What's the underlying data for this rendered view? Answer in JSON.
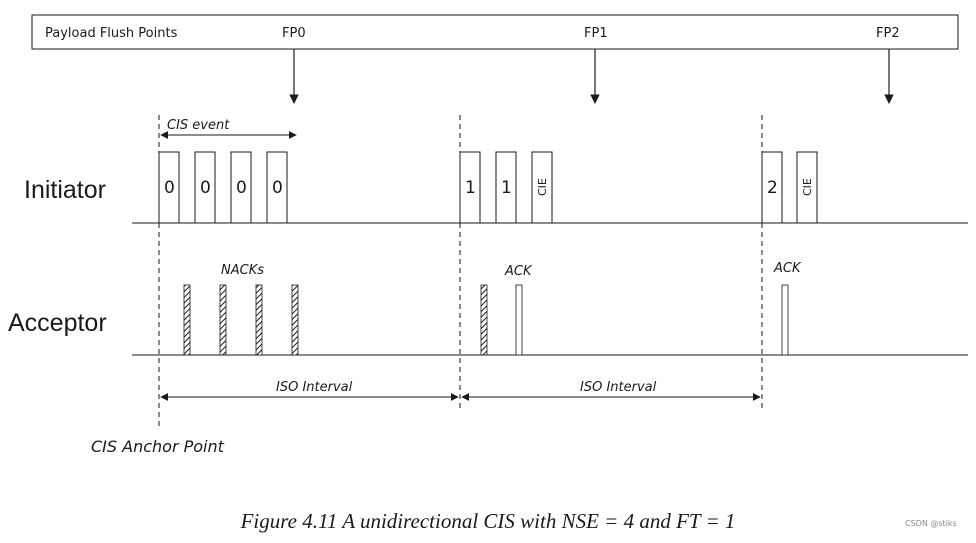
{
  "header": {
    "title": "Payload Flush Points",
    "flush_points": [
      "FP0",
      "FP1",
      "FP2"
    ]
  },
  "rows": {
    "initiator": "Initiator",
    "acceptor": "Acceptor"
  },
  "cis_event_label": "CIS event",
  "initiator_packets": [
    {
      "event": 0,
      "labels": [
        "0",
        "0",
        "0",
        "0"
      ]
    },
    {
      "event": 1,
      "labels": [
        "1",
        "1",
        "CIE"
      ]
    },
    {
      "event": 2,
      "labels": [
        "2",
        "CIE"
      ]
    }
  ],
  "acceptor_labels": {
    "nacks": "NACKs",
    "ack1": "ACK",
    "ack2": "ACK"
  },
  "iso_interval_label": "ISO Interval",
  "anchor_label": "CIS Anchor Point",
  "caption": "Figure 4.11  A unidirectional CIS with NSE = 4 and FT = 1",
  "watermark": "CSDN @stiks",
  "colors": {
    "line": "#1a1a1a",
    "box_fill": "#ffffff"
  }
}
